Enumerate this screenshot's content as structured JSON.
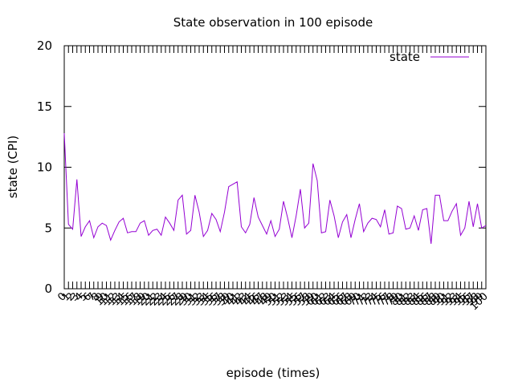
{
  "chart_data": {
    "type": "line",
    "title": "State observation in 100 episode",
    "xlabel": "episode (times)",
    "ylabel": "state (CPI)",
    "xlim": [
      0,
      100
    ],
    "ylim": [
      0,
      20
    ],
    "y_ticks": [
      "0",
      "5",
      "10",
      "15",
      "20"
    ],
    "x_ticks": [
      "0",
      "1",
      "2",
      "3",
      "4",
      "5",
      "6",
      "7",
      "8",
      "9",
      "10",
      "11",
      "12",
      "13",
      "14",
      "15",
      "16",
      "17",
      "18",
      "19",
      "20",
      "21",
      "22",
      "23",
      "24",
      "25",
      "26",
      "27",
      "28",
      "29",
      "30",
      "31",
      "32",
      "33",
      "34",
      "35",
      "36",
      "37",
      "38",
      "39",
      "40",
      "41",
      "42",
      "43",
      "44",
      "45",
      "46",
      "47",
      "48",
      "49",
      "50",
      "51",
      "52",
      "53",
      "54",
      "55",
      "56",
      "57",
      "58",
      "59",
      "60",
      "61",
      "62",
      "63",
      "64",
      "65",
      "66",
      "67",
      "68",
      "69",
      "70",
      "71",
      "72",
      "73",
      "74",
      "75",
      "76",
      "77",
      "78",
      "79",
      "80",
      "81",
      "82",
      "83",
      "84",
      "85",
      "86",
      "87",
      "88",
      "89",
      "90",
      "91",
      "92",
      "93",
      "94",
      "95",
      "96",
      "97",
      "98",
      "99",
      "100"
    ],
    "legend_position": "top-right",
    "series": [
      {
        "name": "state",
        "color": "#9400d3",
        "x": [
          0,
          1,
          2,
          3,
          4,
          5,
          6,
          7,
          8,
          9,
          10,
          11,
          12,
          13,
          14,
          15,
          16,
          17,
          18,
          19,
          20,
          21,
          22,
          23,
          24,
          25,
          26,
          27,
          28,
          29,
          30,
          31,
          32,
          33,
          34,
          35,
          36,
          37,
          38,
          39,
          40,
          41,
          42,
          43,
          44,
          45,
          46,
          47,
          48,
          49,
          50,
          51,
          52,
          53,
          54,
          55,
          56,
          57,
          58,
          59,
          60,
          61,
          62,
          63,
          64,
          65,
          66,
          67,
          68,
          69,
          70,
          71,
          72,
          73,
          74,
          75,
          76,
          77,
          78,
          79,
          80,
          81,
          82,
          83,
          84,
          85,
          86,
          87,
          88,
          89,
          90,
          91,
          92,
          93,
          94,
          95,
          96,
          97,
          98,
          99,
          100
        ],
        "values": [
          12.8,
          5.3,
          4.9,
          9.0,
          4.3,
          5.1,
          5.6,
          4.2,
          5.1,
          5.4,
          5.2,
          4.0,
          4.8,
          5.5,
          5.8,
          4.6,
          4.7,
          4.7,
          5.4,
          5.6,
          4.4,
          4.8,
          4.9,
          4.4,
          5.9,
          5.4,
          4.8,
          7.3,
          7.7,
          4.5,
          4.8,
          7.7,
          6.3,
          4.3,
          4.8,
          6.2,
          5.7,
          4.7,
          6.3,
          8.4,
          8.6,
          8.8,
          5.1,
          4.6,
          5.3,
          7.5,
          5.9,
          5.2,
          4.5,
          5.6,
          4.3,
          4.9,
          7.2,
          5.8,
          4.2,
          6.0,
          8.2,
          5.0,
          5.4,
          10.3,
          8.9,
          4.6,
          4.7,
          7.3,
          6.0,
          4.2,
          5.5,
          6.1,
          4.2,
          5.7,
          7.0,
          4.7,
          5.4,
          5.8,
          5.7,
          5.1,
          6.5,
          4.5,
          4.6,
          6.8,
          6.6,
          4.9,
          5.0,
          6.0,
          4.8,
          6.5,
          6.6,
          3.7,
          7.7,
          7.7,
          5.6,
          5.6,
          6.4,
          7.0,
          4.4,
          5.0,
          7.2,
          5.1,
          7.0,
          5.0,
          5.2
        ]
      }
    ]
  }
}
